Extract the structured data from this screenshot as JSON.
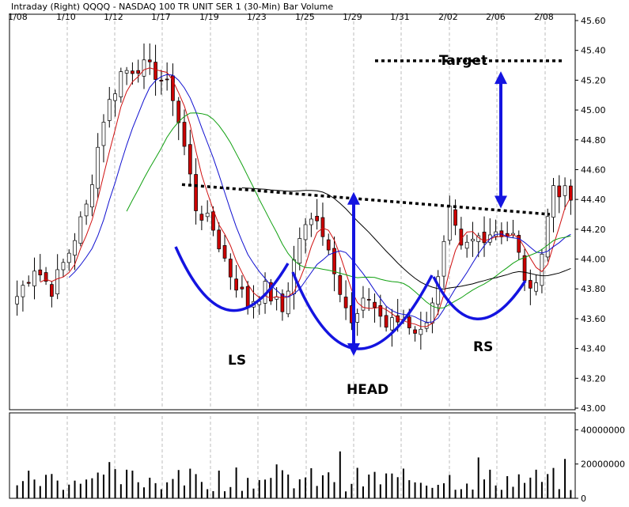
{
  "header": {
    "text": "Intraday   (Right)  QQQQ - NASDAQ 100 TR UNIT SER 1  (30-Min)   Bar   Volume"
  },
  "chart_data": {
    "type": "bar",
    "subtype": "ohlc-intraday-with-moving-averages-and-volume",
    "x_ticks": [
      "1/08",
      "1/10",
      "1/12",
      "1/17",
      "1/19",
      "1/23",
      "1/25",
      "1/29",
      "1/31",
      "2/02",
      "2/06",
      "2/08"
    ],
    "price_ticks": [
      "45.60",
      "45.40",
      "45.20",
      "45.00",
      "44.80",
      "44.60",
      "44.40",
      "44.20",
      "44.00",
      "43.80",
      "43.60",
      "43.40",
      "43.20",
      "43.00"
    ],
    "price_ylim": [
      43.0,
      45.6
    ],
    "volume_ticks": [
      "40000000",
      "20000000",
      "0"
    ],
    "volume_ylim": [
      0,
      48000000
    ],
    "price_anchors": [
      {
        "x": 0,
        "y": 43.75
      },
      {
        "x": 3,
        "y": 43.95
      },
      {
        "x": 6,
        "y": 43.8
      },
      {
        "x": 9,
        "y": 44.05
      },
      {
        "x": 12,
        "y": 44.35
      },
      {
        "x": 15,
        "y": 44.95
      },
      {
        "x": 18,
        "y": 45.25
      },
      {
        "x": 21,
        "y": 45.3
      },
      {
        "x": 24,
        "y": 45.25
      },
      {
        "x": 27,
        "y": 45.1
      },
      {
        "x": 29,
        "y": 44.75
      },
      {
        "x": 31,
        "y": 44.35
      },
      {
        "x": 34,
        "y": 44.2
      },
      {
        "x": 37,
        "y": 43.9
      },
      {
        "x": 40,
        "y": 43.7
      },
      {
        "x": 43,
        "y": 43.8
      },
      {
        "x": 46,
        "y": 43.65
      },
      {
        "x": 49,
        "y": 44.15
      },
      {
        "x": 52,
        "y": 44.3
      },
      {
        "x": 55,
        "y": 43.95
      },
      {
        "x": 58,
        "y": 43.55
      },
      {
        "x": 61,
        "y": 43.75
      },
      {
        "x": 64,
        "y": 43.55
      },
      {
        "x": 67,
        "y": 43.6
      },
      {
        "x": 70,
        "y": 43.5
      },
      {
        "x": 73,
        "y": 43.85
      },
      {
        "x": 75,
        "y": 44.3
      },
      {
        "x": 77,
        "y": 44.05
      },
      {
        "x": 80,
        "y": 44.15
      },
      {
        "x": 83,
        "y": 44.2
      },
      {
        "x": 86,
        "y": 44.15
      },
      {
        "x": 89,
        "y": 43.75
      },
      {
        "x": 91,
        "y": 44.05
      },
      {
        "x": 93,
        "y": 44.5
      },
      {
        "x": 96,
        "y": 44.4
      }
    ],
    "moving_averages": [
      {
        "color": "#d01010",
        "period": 5
      },
      {
        "color": "#1010d0",
        "period": 10
      },
      {
        "color": "#10a010",
        "period": 20
      },
      {
        "color": "#000000",
        "period": 40
      }
    ],
    "annotations": [
      {
        "label": "Target",
        "value": 45.33
      },
      {
        "label": "LS"
      },
      {
        "label": "HEAD"
      },
      {
        "label": "RS"
      }
    ],
    "neckline": {
      "start": 44.5,
      "end": 44.3
    }
  },
  "colors": {
    "up_bar": "#ffffff",
    "down_bar": "#cc0000",
    "pattern_lines": "#1414e0",
    "background": "#ffffff"
  }
}
